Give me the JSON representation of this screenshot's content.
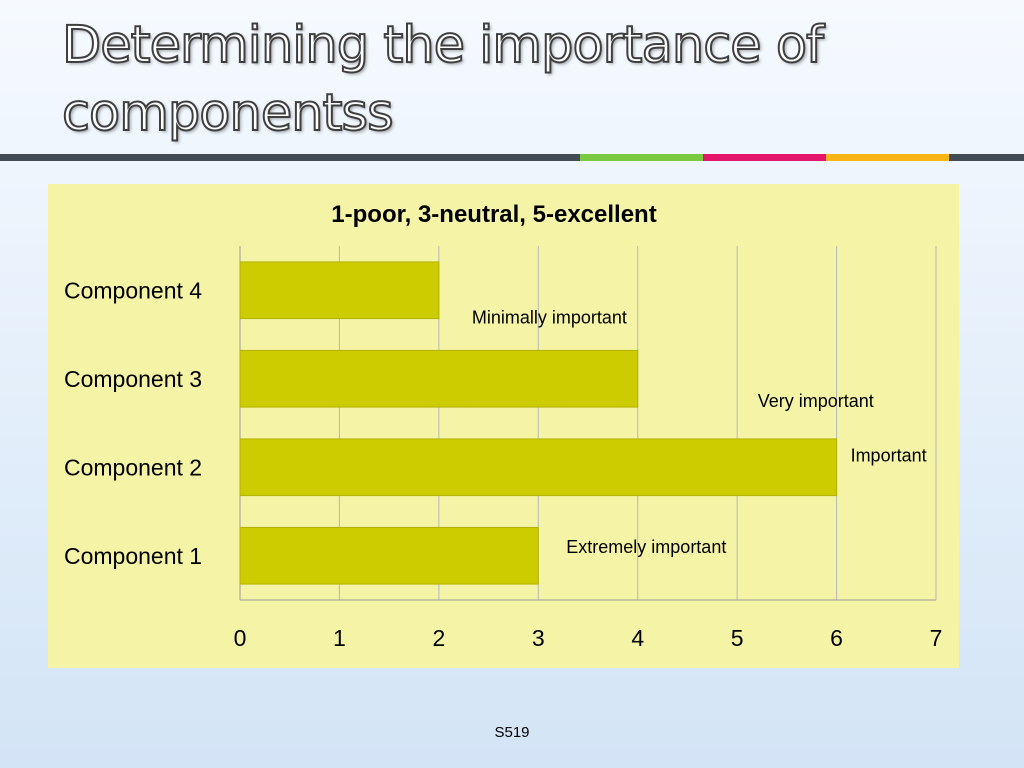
{
  "slide": {
    "title_line1": "Determining the importance of",
    "title_line2": "componentss",
    "slide_number": "S519"
  },
  "colors": {
    "rule": [
      "#434b56",
      "#7ac943",
      "#e3166b",
      "#f7b518",
      "#434b56"
    ],
    "panel_background": "#f5f3a5",
    "bar_fill": "#cccc00",
    "bar_stroke": "#b3b300",
    "grid": "#b8b8b8",
    "axis": "#9a9a9a"
  },
  "chart_data": {
    "type": "bar",
    "orientation": "horizontal",
    "title": "1-poor, 3-neutral, 5-excellent",
    "categories": [
      "Component 4",
      "Component 3",
      "Component 2",
      "Component 1"
    ],
    "values": [
      2,
      4,
      6,
      3
    ],
    "annotations": [
      "Minimally important",
      "Very important",
      "Important",
      "Extremely important"
    ],
    "xlim": [
      0,
      7
    ],
    "xticks": [
      0,
      1,
      2,
      3,
      4,
      5,
      6,
      7
    ],
    "grid": true,
    "legend": false
  }
}
